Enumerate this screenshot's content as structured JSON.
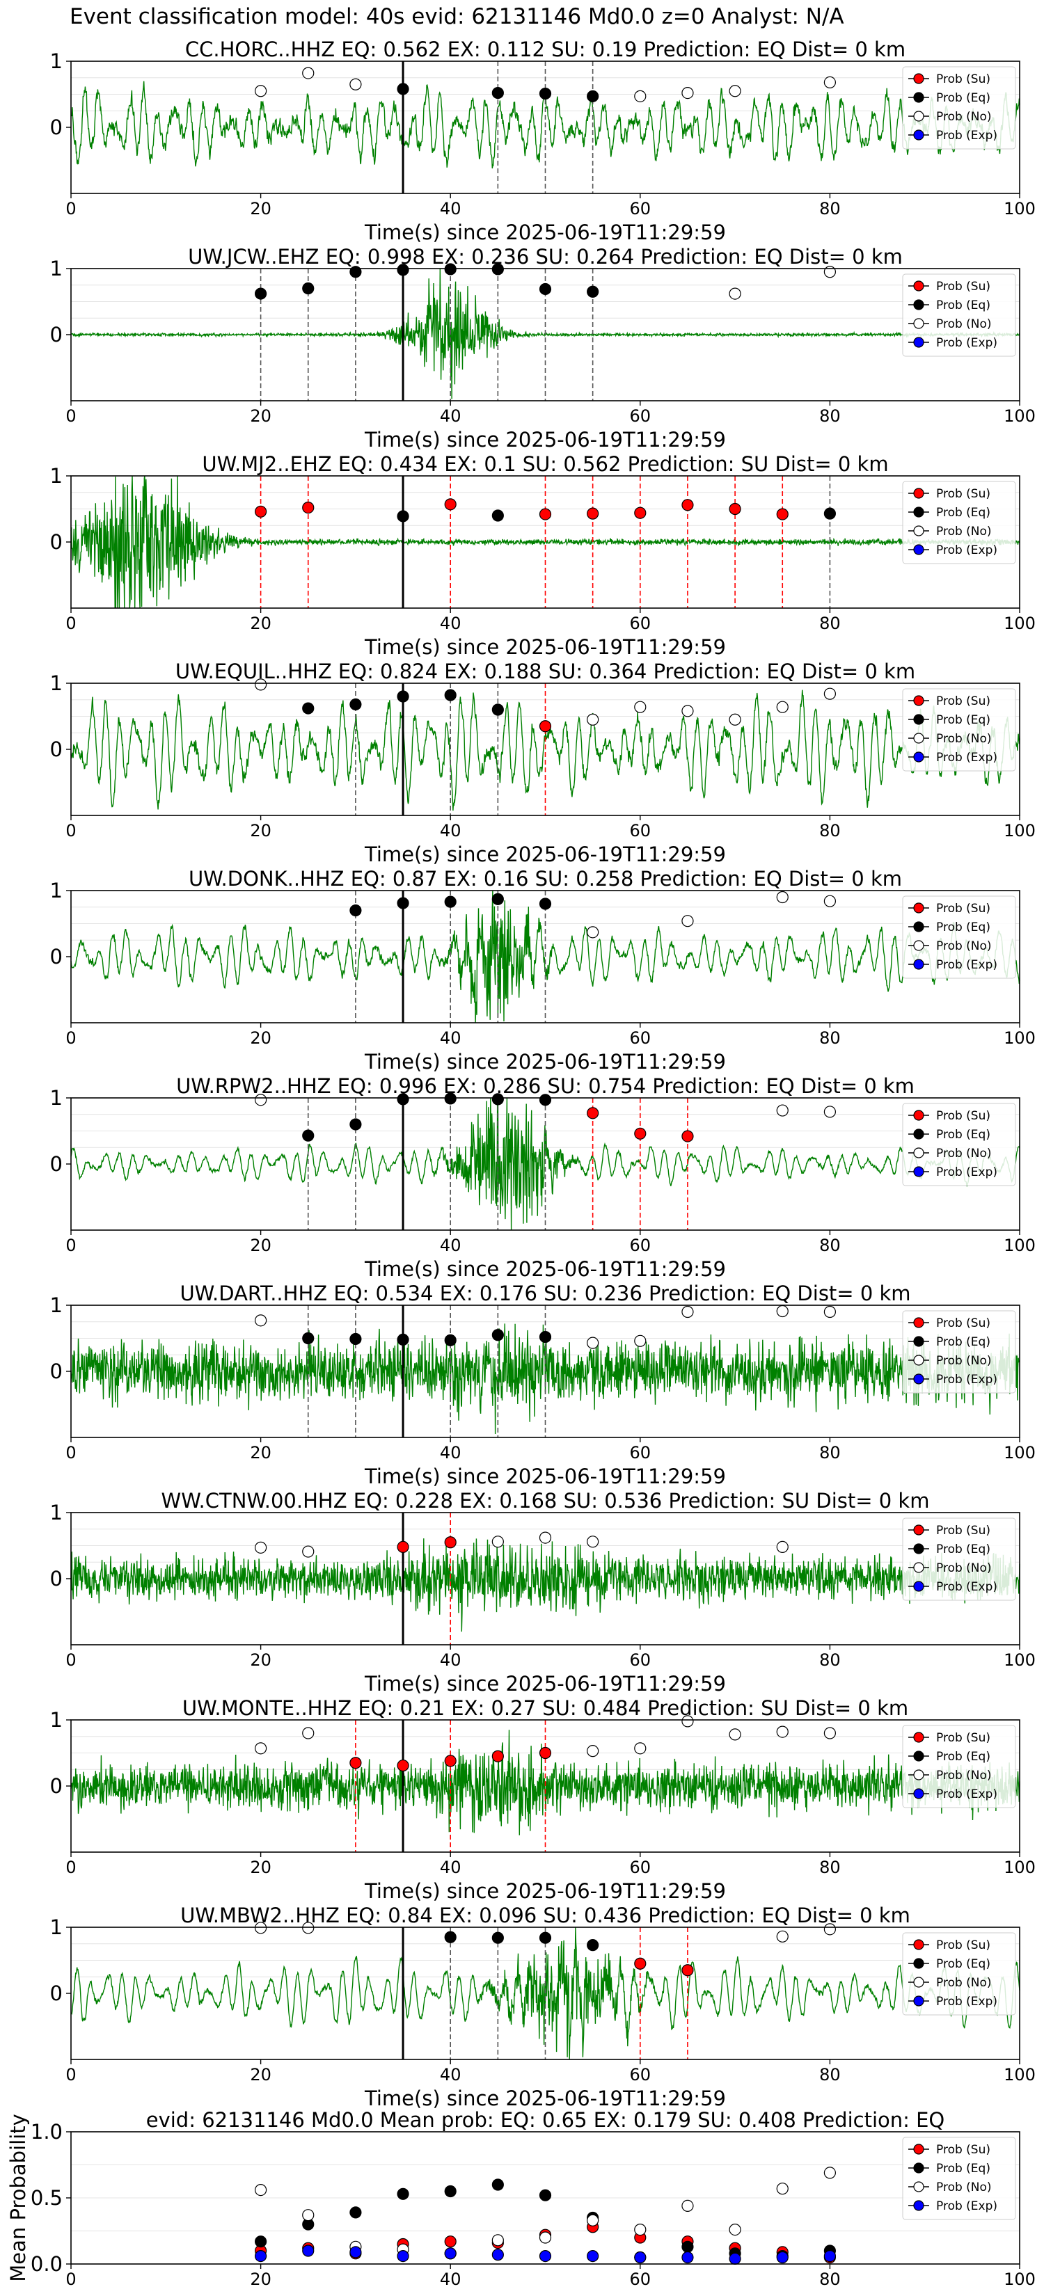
{
  "suptitle": "Event classification model: 40s evid: 62131146 Md0.0 z=0 Analyst: N/A",
  "colors": {
    "waveform": "#008000",
    "su": "#ff0000",
    "eq": "#000000",
    "no": "#ffffff",
    "exp": "#0000ff",
    "pick_line": "#000000",
    "eq_window_line": "#555555",
    "su_window_line": "#ff0000"
  },
  "legend": {
    "placement": "top-right",
    "entries": [
      "Prob (Su)",
      "Prob (Eq)",
      "Prob (No)",
      "Prob (Exp)"
    ]
  },
  "chart_data": [
    {
      "type": "line",
      "title": "CC.HORC..HHZ   EQ: 0.562  EX: 0.112  SU: 0.19   Prediction: EQ    Dist= 0 km",
      "xlabel": "Time(s) since 2025-06-19T11:29:59",
      "ylabel": "",
      "xlim": [
        0,
        100
      ],
      "ylim": [
        -1,
        1
      ],
      "xticks": [
        0,
        20,
        40,
        60,
        80,
        100
      ],
      "yticks": [
        0,
        1
      ],
      "grid": "y",
      "pick_time": 35,
      "waveform": {
        "style": "continuous",
        "amplitude": 0.42,
        "noise": 0.25,
        "burst_center": 40,
        "burst_width": 60,
        "burst_amp": 0.0,
        "seed": 11
      },
      "window_lines": {
        "eq": [
          45,
          50,
          55
        ],
        "su": []
      },
      "series": [
        {
          "name": "Prob (Su)",
          "x": [],
          "y": []
        },
        {
          "name": "Prob (Eq)",
          "x": [
            35,
            45,
            50,
            55
          ],
          "y": [
            0.58,
            0.52,
            0.51,
            0.47
          ]
        },
        {
          "name": "Prob (No)",
          "x": [
            20,
            25,
            30,
            60,
            65,
            70,
            80
          ],
          "y": [
            0.55,
            0.82,
            0.65,
            0.47,
            0.52,
            0.55,
            0.68
          ]
        },
        {
          "name": "Prob (Exp)",
          "x": [],
          "y": []
        }
      ]
    },
    {
      "type": "line",
      "title": "UW.JCW..EHZ   EQ: 0.998  EX: 0.236  SU: 0.264   Prediction: EQ    Dist= 0 km",
      "xlabel": "Time(s) since 2025-06-19T11:29:59",
      "ylabel": "",
      "xlim": [
        0,
        100
      ],
      "ylim": [
        -1,
        1
      ],
      "xticks": [
        0,
        20,
        40,
        60,
        80,
        100
      ],
      "yticks": [
        0,
        1
      ],
      "grid": "y",
      "pick_time": 35,
      "waveform": {
        "style": "quiet",
        "amplitude": 0.0,
        "noise": 0.02,
        "burst_center": 40,
        "burst_width": 6,
        "burst_amp": 0.45,
        "seed": 22
      },
      "window_lines": {
        "eq": [
          20,
          25,
          30,
          40,
          45,
          50,
          55
        ],
        "su": []
      },
      "series": [
        {
          "name": "Prob (Su)",
          "x": [],
          "y": []
        },
        {
          "name": "Prob (Eq)",
          "x": [
            20,
            25,
            30,
            35,
            40,
            45,
            50,
            55
          ],
          "y": [
            0.62,
            0.7,
            0.95,
            0.98,
            0.99,
            0.99,
            0.69,
            0.65
          ]
        },
        {
          "name": "Prob (No)",
          "x": [
            70,
            80
          ],
          "y": [
            0.62,
            0.95
          ]
        },
        {
          "name": "Prob (Exp)",
          "x": [],
          "y": []
        }
      ]
    },
    {
      "type": "line",
      "title": "UW.MJ2..EHZ   EQ: 0.434  EX: 0.1  SU: 0.562   Prediction: SU    Dist= 0 km",
      "xlabel": "Time(s) since 2025-06-19T11:29:59",
      "ylabel": "",
      "xlim": [
        0,
        100
      ],
      "ylim": [
        -1,
        1
      ],
      "xticks": [
        0,
        20,
        40,
        60,
        80,
        100
      ],
      "yticks": [
        0,
        1
      ],
      "grid": "y",
      "pick_time": 35,
      "waveform": {
        "style": "quiet",
        "amplitude": 0.0,
        "noise": 0.04,
        "burst_center": 7,
        "burst_width": 9,
        "burst_amp": 0.7,
        "seed": 33
      },
      "window_lines": {
        "eq": [
          80
        ],
        "su": [
          20,
          25,
          40,
          50,
          55,
          60,
          65,
          70,
          75
        ]
      },
      "series": [
        {
          "name": "Prob (Su)",
          "x": [
            20,
            25,
            40,
            50,
            55,
            60,
            65,
            70,
            75
          ],
          "y": [
            0.46,
            0.52,
            0.57,
            0.42,
            0.43,
            0.44,
            0.56,
            0.5,
            0.42
          ]
        },
        {
          "name": "Prob (Eq)",
          "x": [
            35,
            45,
            80
          ],
          "y": [
            0.39,
            0.4,
            0.43
          ]
        },
        {
          "name": "Prob (No)",
          "x": [],
          "y": []
        },
        {
          "name": "Prob (Exp)",
          "x": [],
          "y": []
        }
      ]
    },
    {
      "type": "line",
      "title": "UW.EQUIL..HHZ   EQ: 0.824  EX: 0.188  SU: 0.364   Prediction: EQ    Dist= 0 km",
      "xlabel": "Time(s) since 2025-06-19T11:29:59",
      "ylabel": "",
      "xlim": [
        0,
        100
      ],
      "ylim": [
        -1,
        1
      ],
      "xticks": [
        0,
        20,
        40,
        60,
        80,
        100
      ],
      "yticks": [
        0,
        1
      ],
      "grid": "y",
      "pick_time": 35,
      "waveform": {
        "style": "continuous",
        "amplitude": 0.6,
        "noise": 0.25,
        "burst_center": 40,
        "burst_width": 60,
        "burst_amp": 0.0,
        "seed": 44
      },
      "window_lines": {
        "eq": [
          30,
          40,
          45
        ],
        "su": [
          50
        ]
      },
      "series": [
        {
          "name": "Prob (Su)",
          "x": [
            50
          ],
          "y": [
            0.35
          ]
        },
        {
          "name": "Prob (Eq)",
          "x": [
            25,
            30,
            35,
            40,
            45
          ],
          "y": [
            0.62,
            0.68,
            0.8,
            0.82,
            0.6
          ]
        },
        {
          "name": "Prob (No)",
          "x": [
            20,
            55,
            60,
            65,
            70,
            75,
            80
          ],
          "y": [
            0.98,
            0.45,
            0.64,
            0.58,
            0.45,
            0.64,
            0.84
          ]
        },
        {
          "name": "Prob (Exp)",
          "x": [],
          "y": []
        }
      ]
    },
    {
      "type": "line",
      "title": "UW.DONK..HHZ   EQ: 0.87  EX: 0.16  SU: 0.258   Prediction: EQ    Dist= 0 km",
      "xlabel": "Time(s) since 2025-06-19T11:29:59",
      "ylabel": "",
      "xlim": [
        0,
        100
      ],
      "ylim": [
        -1,
        1
      ],
      "xticks": [
        0,
        20,
        40,
        60,
        80,
        100
      ],
      "yticks": [
        0,
        1
      ],
      "grid": "y",
      "pick_time": 35,
      "waveform": {
        "style": "continuous",
        "amplitude": 0.35,
        "noise": 0.12,
        "burst_center": 45,
        "burst_width": 5,
        "burst_amp": 0.55,
        "seed": 55
      },
      "window_lines": {
        "eq": [
          30,
          40,
          45,
          50
        ],
        "su": []
      },
      "series": [
        {
          "name": "Prob (Su)",
          "x": [],
          "y": []
        },
        {
          "name": "Prob (Eq)",
          "x": [
            30,
            35,
            40,
            45,
            50
          ],
          "y": [
            0.7,
            0.81,
            0.83,
            0.87,
            0.8
          ]
        },
        {
          "name": "Prob (No)",
          "x": [
            55,
            65,
            75,
            80
          ],
          "y": [
            0.37,
            0.54,
            0.9,
            0.84
          ]
        },
        {
          "name": "Prob (Exp)",
          "x": [],
          "y": []
        }
      ]
    },
    {
      "type": "line",
      "title": "UW.RPW2..HHZ   EQ: 0.996  EX: 0.286  SU: 0.754   Prediction: EQ    Dist= 0 km",
      "xlabel": "Time(s) since 2025-06-19T11:29:59",
      "ylabel": "",
      "xlim": [
        0,
        100
      ],
      "ylim": [
        -1,
        1
      ],
      "xticks": [
        0,
        20,
        40,
        60,
        80,
        100
      ],
      "yticks": [
        0,
        1
      ],
      "grid": "y",
      "pick_time": 35,
      "waveform": {
        "style": "continuous",
        "amplitude": 0.22,
        "noise": 0.07,
        "burst_center": 46,
        "burst_width": 6,
        "burst_amp": 0.65,
        "seed": 66
      },
      "window_lines": {
        "eq": [
          25,
          30,
          40,
          45,
          50
        ],
        "su": [
          55,
          60,
          65
        ]
      },
      "series": [
        {
          "name": "Prob (Su)",
          "x": [
            55,
            60,
            65
          ],
          "y": [
            0.77,
            0.46,
            0.42
          ]
        },
        {
          "name": "Prob (Eq)",
          "x": [
            25,
            30,
            35,
            40,
            45,
            50
          ],
          "y": [
            0.43,
            0.6,
            0.98,
            0.99,
            0.98,
            0.97
          ]
        },
        {
          "name": "Prob (No)",
          "x": [
            20,
            75,
            80
          ],
          "y": [
            0.97,
            0.81,
            0.79
          ]
        },
        {
          "name": "Prob (Exp)",
          "x": [],
          "y": []
        }
      ]
    },
    {
      "type": "line",
      "title": "UW.DART..HHZ   EQ: 0.534  EX: 0.176  SU: 0.236   Prediction: EQ    Dist= 0 km",
      "xlabel": "Time(s) since 2025-06-19T11:29:59",
      "ylabel": "",
      "xlim": [
        0,
        100
      ],
      "ylim": [
        -1,
        1
      ],
      "xticks": [
        0,
        20,
        40,
        60,
        80,
        100
      ],
      "yticks": [
        0,
        1
      ],
      "grid": "y",
      "pick_time": 35,
      "waveform": {
        "style": "noisy",
        "amplitude": 0.1,
        "noise": 0.42,
        "burst_center": 45,
        "burst_width": 10,
        "burst_amp": 0.25,
        "seed": 77
      },
      "window_lines": {
        "eq": [
          25,
          30,
          40,
          45,
          50
        ],
        "su": []
      },
      "series": [
        {
          "name": "Prob (Su)",
          "x": [],
          "y": []
        },
        {
          "name": "Prob (Eq)",
          "x": [
            25,
            30,
            35,
            40,
            45,
            50
          ],
          "y": [
            0.5,
            0.49,
            0.48,
            0.47,
            0.55,
            0.52
          ]
        },
        {
          "name": "Prob (No)",
          "x": [
            20,
            55,
            60,
            65,
            75,
            80
          ],
          "y": [
            0.77,
            0.43,
            0.46,
            0.9,
            0.91,
            0.9
          ]
        },
        {
          "name": "Prob (Exp)",
          "x": [],
          "y": []
        }
      ]
    },
    {
      "type": "line",
      "title": "WW.CTNW.00.HHZ   EQ: 0.228  EX: 0.168  SU: 0.536   Prediction: SU    Dist= 0 km",
      "xlabel": "Time(s) since 2025-06-19T11:29:59",
      "ylabel": "",
      "xlim": [
        0,
        100
      ],
      "ylim": [
        -1,
        1
      ],
      "xticks": [
        0,
        20,
        40,
        60,
        80,
        100
      ],
      "yticks": [
        0,
        1
      ],
      "grid": "y",
      "pick_time": 35,
      "waveform": {
        "style": "noisy",
        "amplitude": 0.12,
        "noise": 0.3,
        "burst_center": 45,
        "burst_width": 20,
        "burst_amp": 0.25,
        "seed": 88
      },
      "window_lines": {
        "eq": [],
        "su": [
          40
        ]
      },
      "series": [
        {
          "name": "Prob (Su)",
          "x": [
            35,
            40
          ],
          "y": [
            0.48,
            0.55
          ]
        },
        {
          "name": "Prob (Eq)",
          "x": [],
          "y": []
        },
        {
          "name": "Prob (No)",
          "x": [
            20,
            25,
            45,
            50,
            55,
            75
          ],
          "y": [
            0.47,
            0.41,
            0.56,
            0.62,
            0.56,
            0.48
          ]
        },
        {
          "name": "Prob (Exp)",
          "x": [],
          "y": []
        }
      ]
    },
    {
      "type": "line",
      "title": "UW.MONTE..HHZ   EQ: 0.21  EX: 0.27  SU: 0.484   Prediction: SU    Dist= 0 km",
      "xlabel": "Time(s) since 2025-06-19T11:29:59",
      "ylabel": "",
      "xlim": [
        0,
        100
      ],
      "ylim": [
        -1,
        1
      ],
      "xticks": [
        0,
        20,
        40,
        60,
        80,
        100
      ],
      "yticks": [
        0,
        1
      ],
      "grid": "y",
      "pick_time": 35,
      "waveform": {
        "style": "noisy",
        "amplitude": 0.1,
        "noise": 0.32,
        "burst_center": 45,
        "burst_width": 10,
        "burst_amp": 0.35,
        "seed": 99
      },
      "window_lines": {
        "eq": [],
        "su": [
          30,
          40,
          50
        ]
      },
      "series": [
        {
          "name": "Prob (Su)",
          "x": [
            30,
            35,
            40,
            45,
            50
          ],
          "y": [
            0.35,
            0.31,
            0.38,
            0.45,
            0.5
          ]
        },
        {
          "name": "Prob (Eq)",
          "x": [],
          "y": []
        },
        {
          "name": "Prob (No)",
          "x": [
            20,
            25,
            55,
            60,
            65,
            70,
            75,
            80
          ],
          "y": [
            0.57,
            0.8,
            0.53,
            0.57,
            0.98,
            0.78,
            0.82,
            0.8
          ]
        },
        {
          "name": "Prob (Exp)",
          "x": [],
          "y": []
        }
      ]
    },
    {
      "type": "line",
      "title": "UW.MBW2..HHZ   EQ: 0.84  EX: 0.096  SU: 0.436   Prediction: EQ    Dist= 0 km",
      "xlabel": "Time(s) since 2025-06-19T11:29:59",
      "ylabel": "",
      "xlim": [
        0,
        100
      ],
      "ylim": [
        -1,
        1
      ],
      "xticks": [
        0,
        20,
        40,
        60,
        80,
        100
      ],
      "yticks": [
        0,
        1
      ],
      "grid": "y",
      "pick_time": 35,
      "waveform": {
        "style": "continuous",
        "amplitude": 0.38,
        "noise": 0.1,
        "burst_center": 52,
        "burst_width": 8,
        "burst_amp": 0.45,
        "seed": 111
      },
      "window_lines": {
        "eq": [
          40,
          45,
          50
        ],
        "su": [
          60,
          65
        ]
      },
      "series": [
        {
          "name": "Prob (Su)",
          "x": [
            60,
            65
          ],
          "y": [
            0.45,
            0.35
          ]
        },
        {
          "name": "Prob (Eq)",
          "x": [
            40,
            45,
            50,
            55
          ],
          "y": [
            0.85,
            0.84,
            0.84,
            0.73
          ]
        },
        {
          "name": "Prob (No)",
          "x": [
            20,
            25,
            75,
            80
          ],
          "y": [
            0.99,
            0.99,
            0.86,
            0.97
          ]
        },
        {
          "name": "Prob (Exp)",
          "x": [],
          "y": []
        }
      ]
    },
    {
      "type": "scatter",
      "title": "evid: 62131146  Md0.0   Mean prob:   EQ: 0.65  EX: 0.179  SU: 0.408   Prediction: EQ",
      "xlabel": "",
      "ylabel": "Mean Probability",
      "xlim": [
        0,
        100
      ],
      "ylim": [
        0,
        1
      ],
      "xticks": [
        0,
        20,
        40,
        60,
        80,
        100
      ],
      "yticks": [
        0.0,
        0.5,
        1.0
      ],
      "grid": "y",
      "series": [
        {
          "name": "Prob (Su)",
          "x": [
            20,
            25,
            30,
            35,
            40,
            45,
            50,
            55,
            60,
            65,
            70,
            75,
            80
          ],
          "y": [
            0.1,
            0.12,
            0.08,
            0.15,
            0.17,
            0.16,
            0.22,
            0.28,
            0.2,
            0.17,
            0.12,
            0.09,
            0.05
          ]
        },
        {
          "name": "Prob (Eq)",
          "x": [
            20,
            25,
            30,
            35,
            40,
            45,
            50,
            55,
            60,
            65,
            70,
            75,
            80
          ],
          "y": [
            0.17,
            0.3,
            0.39,
            0.53,
            0.55,
            0.6,
            0.52,
            0.35,
            0.05,
            0.13,
            0.08,
            0.06,
            0.1
          ]
        },
        {
          "name": "Prob (No)",
          "x": [
            20,
            25,
            30,
            35,
            40,
            45,
            50,
            55,
            60,
            65,
            70,
            75,
            80
          ],
          "y": [
            0.56,
            0.37,
            0.13,
            0.11,
            0.08,
            0.18,
            0.2,
            0.33,
            0.26,
            0.44,
            0.26,
            0.57,
            0.69
          ]
        },
        {
          "name": "Prob (Exp)",
          "x": [
            20,
            25,
            30,
            35,
            40,
            45,
            50,
            55,
            60,
            65,
            70,
            75,
            80
          ],
          "y": [
            0.06,
            0.1,
            0.09,
            0.06,
            0.08,
            0.07,
            0.06,
            0.06,
            0.05,
            0.05,
            0.04,
            0.05,
            0.06
          ]
        }
      ]
    }
  ]
}
